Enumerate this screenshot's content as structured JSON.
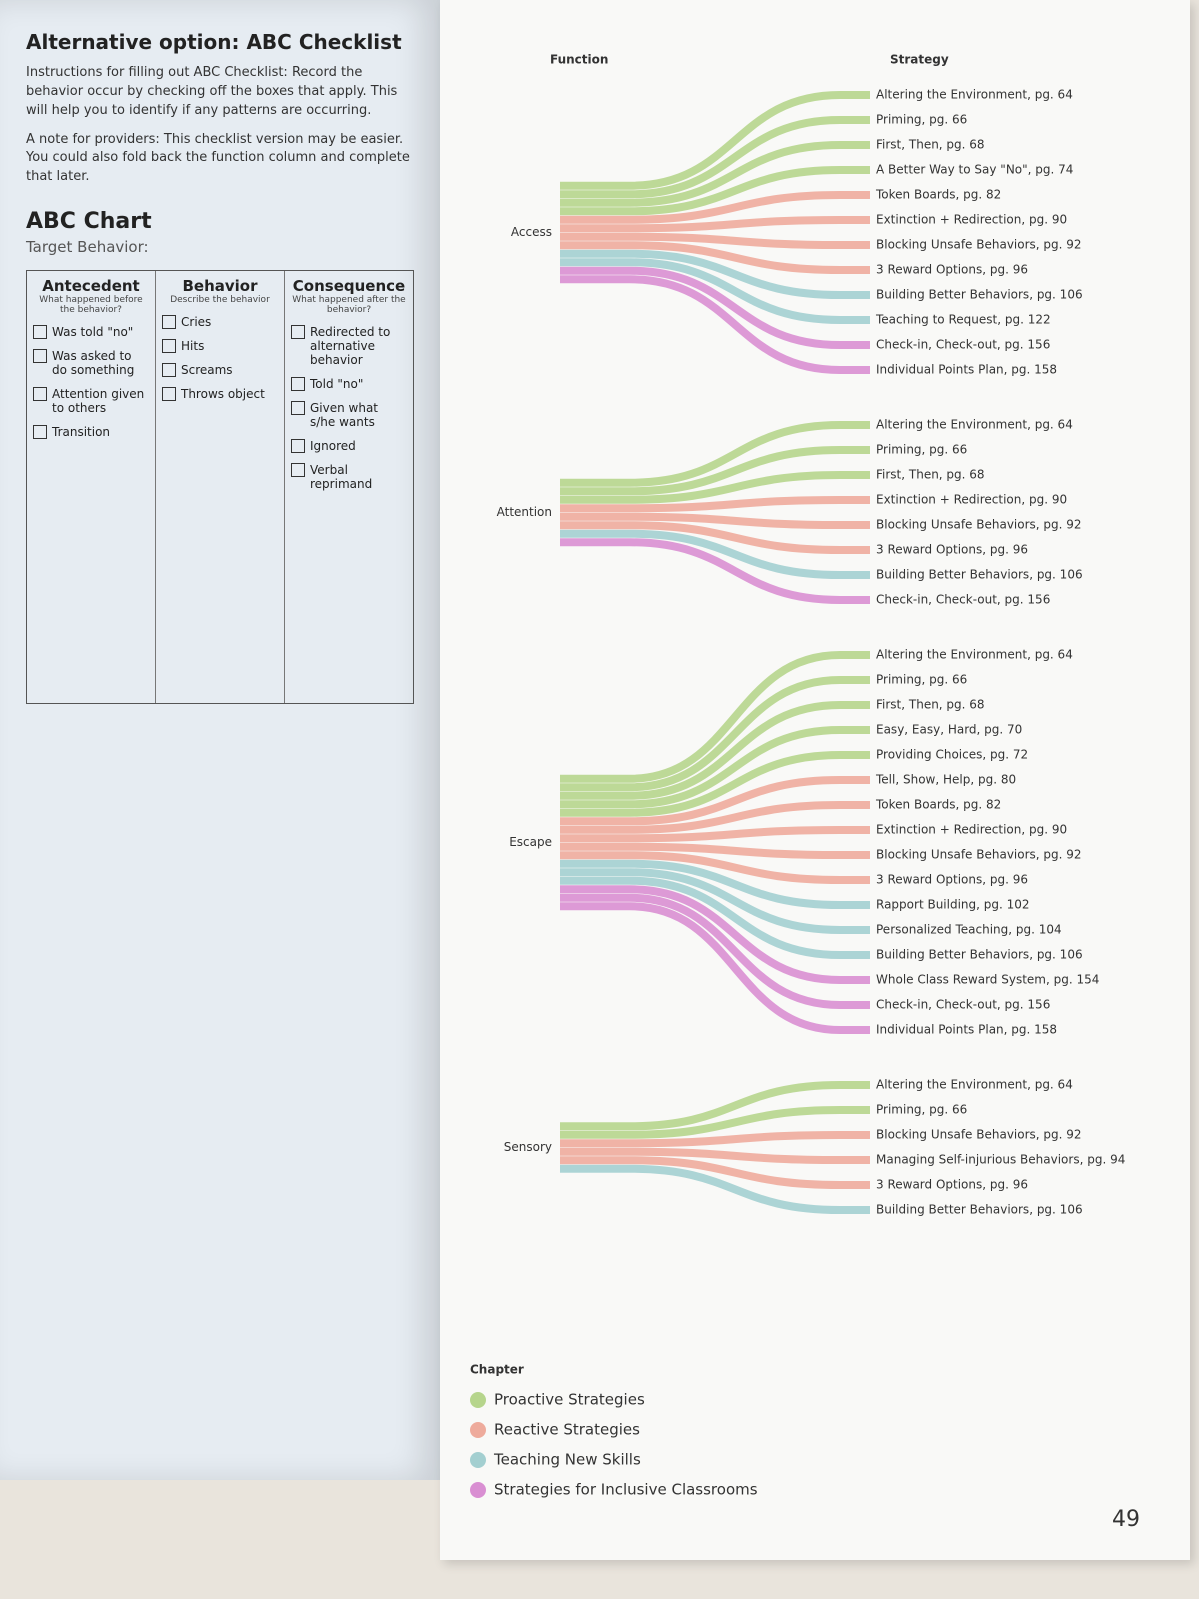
{
  "left_page": {
    "heading": "Alternative option: ABC Checklist",
    "instructions": "Instructions for filling out ABC Checklist: Record the behavior occur by checking off the boxes that apply. This will help you to identify if any patterns are occurring.",
    "note": "A note for providers: This checklist version may be easier. You could also fold back the function column and complete that later.",
    "chart_title": "ABC Chart",
    "target": "Target Behavior:",
    "columns": [
      {
        "title": "Antecedent",
        "subtitle": "What happened before the behavior?",
        "items": [
          "Was told \"no\"",
          "Was asked to do something",
          "Attention given to others",
          "Transition"
        ]
      },
      {
        "title": "Behavior",
        "subtitle": "Describe the behavior",
        "items": [
          "Cries",
          "Hits",
          "Screams",
          "Throws object"
        ]
      },
      {
        "title": "Consequence",
        "subtitle": "What happened after the behavior?",
        "items": [
          "Redirected to alternative behavior",
          "Told \"no\"",
          "Given what s/he wants",
          "Ignored",
          "Verbal reprimand"
        ]
      }
    ]
  },
  "diagram": {
    "function_label": "Function",
    "strategy_label": "Strategy",
    "chapter_label": "Chapter",
    "chapters": [
      {
        "name": "Proactive Strategies",
        "color": "#b6d58c"
      },
      {
        "name": "Reactive Strategies",
        "color": "#eeab9c"
      },
      {
        "name": "Teaching New Skills",
        "color": "#a3cfd0"
      },
      {
        "name": "Strategies for Inclusive Classrooms",
        "color": "#d98fd2"
      }
    ],
    "functions": [
      {
        "name": "Access",
        "strategies": [
          {
            "label": "Altering the Environment, pg. 64",
            "color": "#b6d58c"
          },
          {
            "label": "Priming, pg. 66",
            "color": "#b6d58c"
          },
          {
            "label": "First, Then, pg. 68",
            "color": "#b6d58c"
          },
          {
            "label": "A Better Way to Say \"No\", pg. 74",
            "color": "#b6d58c"
          },
          {
            "label": "Token Boards, pg. 82",
            "color": "#eeab9c"
          },
          {
            "label": "Extinction + Redirection, pg. 90",
            "color": "#eeab9c"
          },
          {
            "label": "Blocking Unsafe Behaviors, pg. 92",
            "color": "#eeab9c"
          },
          {
            "label": "3 Reward Options, pg. 96",
            "color": "#eeab9c"
          },
          {
            "label": "Building Better Behaviors, pg. 106",
            "color": "#a3cfd0"
          },
          {
            "label": "Teaching to Request, pg. 122",
            "color": "#a3cfd0"
          },
          {
            "label": "Check-in, Check-out, pg. 156",
            "color": "#d98fd2"
          },
          {
            "label": "Individual Points Plan, pg. 158",
            "color": "#d98fd2"
          }
        ]
      },
      {
        "name": "Attention",
        "strategies": [
          {
            "label": "Altering the Environment, pg. 64",
            "color": "#b6d58c"
          },
          {
            "label": "Priming, pg. 66",
            "color": "#b6d58c"
          },
          {
            "label": "First, Then, pg. 68",
            "color": "#b6d58c"
          },
          {
            "label": "Extinction + Redirection, pg. 90",
            "color": "#eeab9c"
          },
          {
            "label": "Blocking Unsafe Behaviors, pg. 92",
            "color": "#eeab9c"
          },
          {
            "label": "3 Reward Options, pg. 96",
            "color": "#eeab9c"
          },
          {
            "label": "Building Better Behaviors, pg. 106",
            "color": "#a3cfd0"
          },
          {
            "label": "Check-in, Check-out, pg. 156",
            "color": "#d98fd2"
          }
        ]
      },
      {
        "name": "Escape",
        "strategies": [
          {
            "label": "Altering the Environment, pg. 64",
            "color": "#b6d58c"
          },
          {
            "label": "Priming, pg. 66",
            "color": "#b6d58c"
          },
          {
            "label": "First, Then, pg. 68",
            "color": "#b6d58c"
          },
          {
            "label": "Easy, Easy, Hard, pg. 70",
            "color": "#b6d58c"
          },
          {
            "label": "Providing Choices, pg. 72",
            "color": "#b6d58c"
          },
          {
            "label": "Tell, Show, Help, pg. 80",
            "color": "#eeab9c"
          },
          {
            "label": "Token Boards, pg. 82",
            "color": "#eeab9c"
          },
          {
            "label": "Extinction + Redirection, pg. 90",
            "color": "#eeab9c"
          },
          {
            "label": "Blocking Unsafe Behaviors, pg. 92",
            "color": "#eeab9c"
          },
          {
            "label": "3 Reward Options, pg. 96",
            "color": "#eeab9c"
          },
          {
            "label": "Rapport Building, pg. 102",
            "color": "#a3cfd0"
          },
          {
            "label": "Personalized Teaching, pg. 104",
            "color": "#a3cfd0"
          },
          {
            "label": "Building Better Behaviors, pg. 106",
            "color": "#a3cfd0"
          },
          {
            "label": "Whole Class Reward System, pg. 154",
            "color": "#d98fd2"
          },
          {
            "label": "Check-in, Check-out, pg. 156",
            "color": "#d98fd2"
          },
          {
            "label": "Individual Points Plan, pg. 158",
            "color": "#d98fd2"
          }
        ]
      },
      {
        "name": "Sensory",
        "strategies": [
          {
            "label": "Altering the Environment, pg. 64",
            "color": "#b6d58c"
          },
          {
            "label": "Priming, pg. 66",
            "color": "#b6d58c"
          },
          {
            "label": "Blocking Unsafe Behaviors, pg. 92",
            "color": "#eeab9c"
          },
          {
            "label": "Managing Self-injurious Behaviors, pg. 94",
            "color": "#eeab9c"
          },
          {
            "label": "3 Reward Options, pg. 96",
            "color": "#eeab9c"
          },
          {
            "label": "Building Better Behaviors, pg. 106",
            "color": "#a3cfd0"
          }
        ]
      }
    ]
  },
  "page_number": "49"
}
